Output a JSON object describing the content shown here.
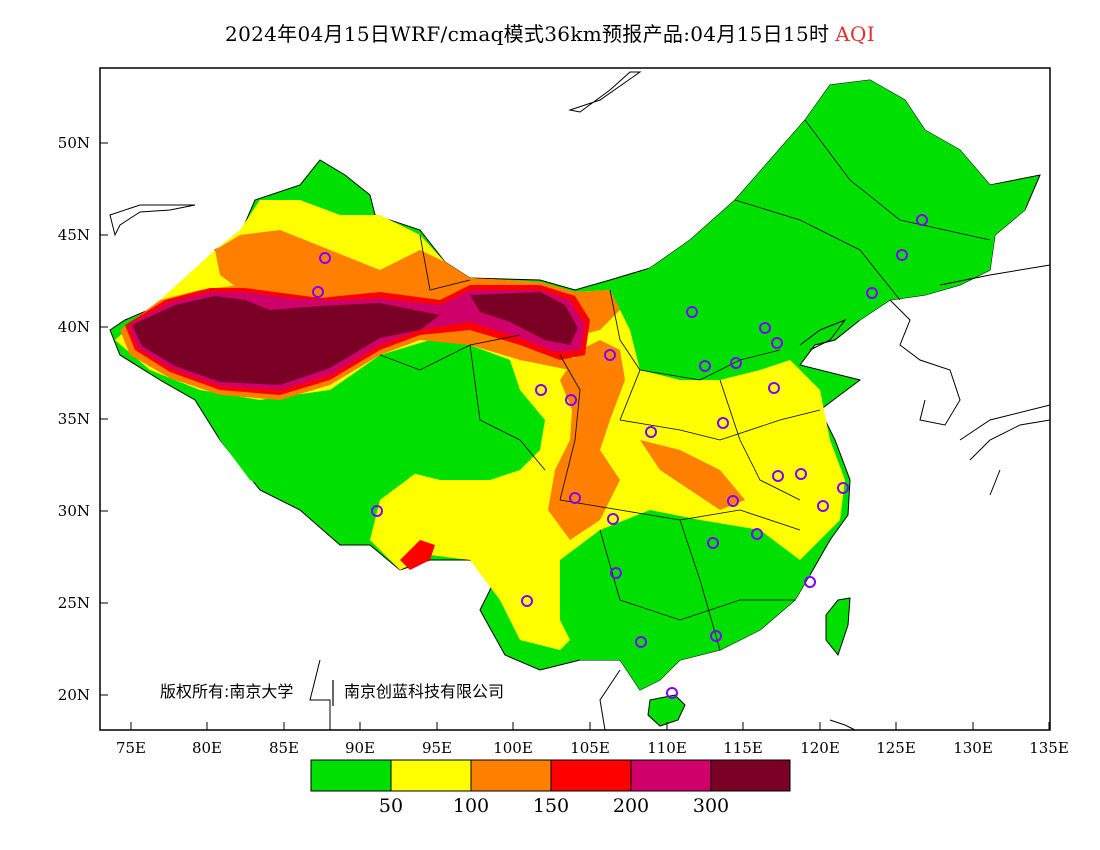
{
  "title": {
    "main": "2024年04月15日WRF/cmaq模式36km预报产品:04月15日15时",
    "variable": "AQI"
  },
  "axes": {
    "lon_ticks": [
      "75E",
      "80E",
      "85E",
      "90E",
      "95E",
      "100E",
      "105E",
      "110E",
      "115E",
      "120E",
      "125E",
      "130E",
      "135E"
    ],
    "lat_ticks": [
      "20N",
      "25N",
      "30N",
      "35N",
      "40N",
      "45N",
      "50N"
    ]
  },
  "legend": {
    "colors": [
      "#00e000",
      "#ffff00",
      "#ff8000",
      "#ff0000",
      "#d0006a",
      "#7a0026"
    ],
    "labels": [
      "50",
      "100",
      "150",
      "200",
      "300"
    ]
  },
  "copyright": "版权所有:南京大学",
  "copyright2": "南京创蓝科技有限公司",
  "colors": {
    "good": "#00e000",
    "moderate": "#ffff00",
    "usg": "#ff8000",
    "unhealthy": "#ff0000",
    "very_unhealthy": "#d0006a",
    "hazardous": "#7a0026",
    "station_marker": "#8000ff"
  }
}
